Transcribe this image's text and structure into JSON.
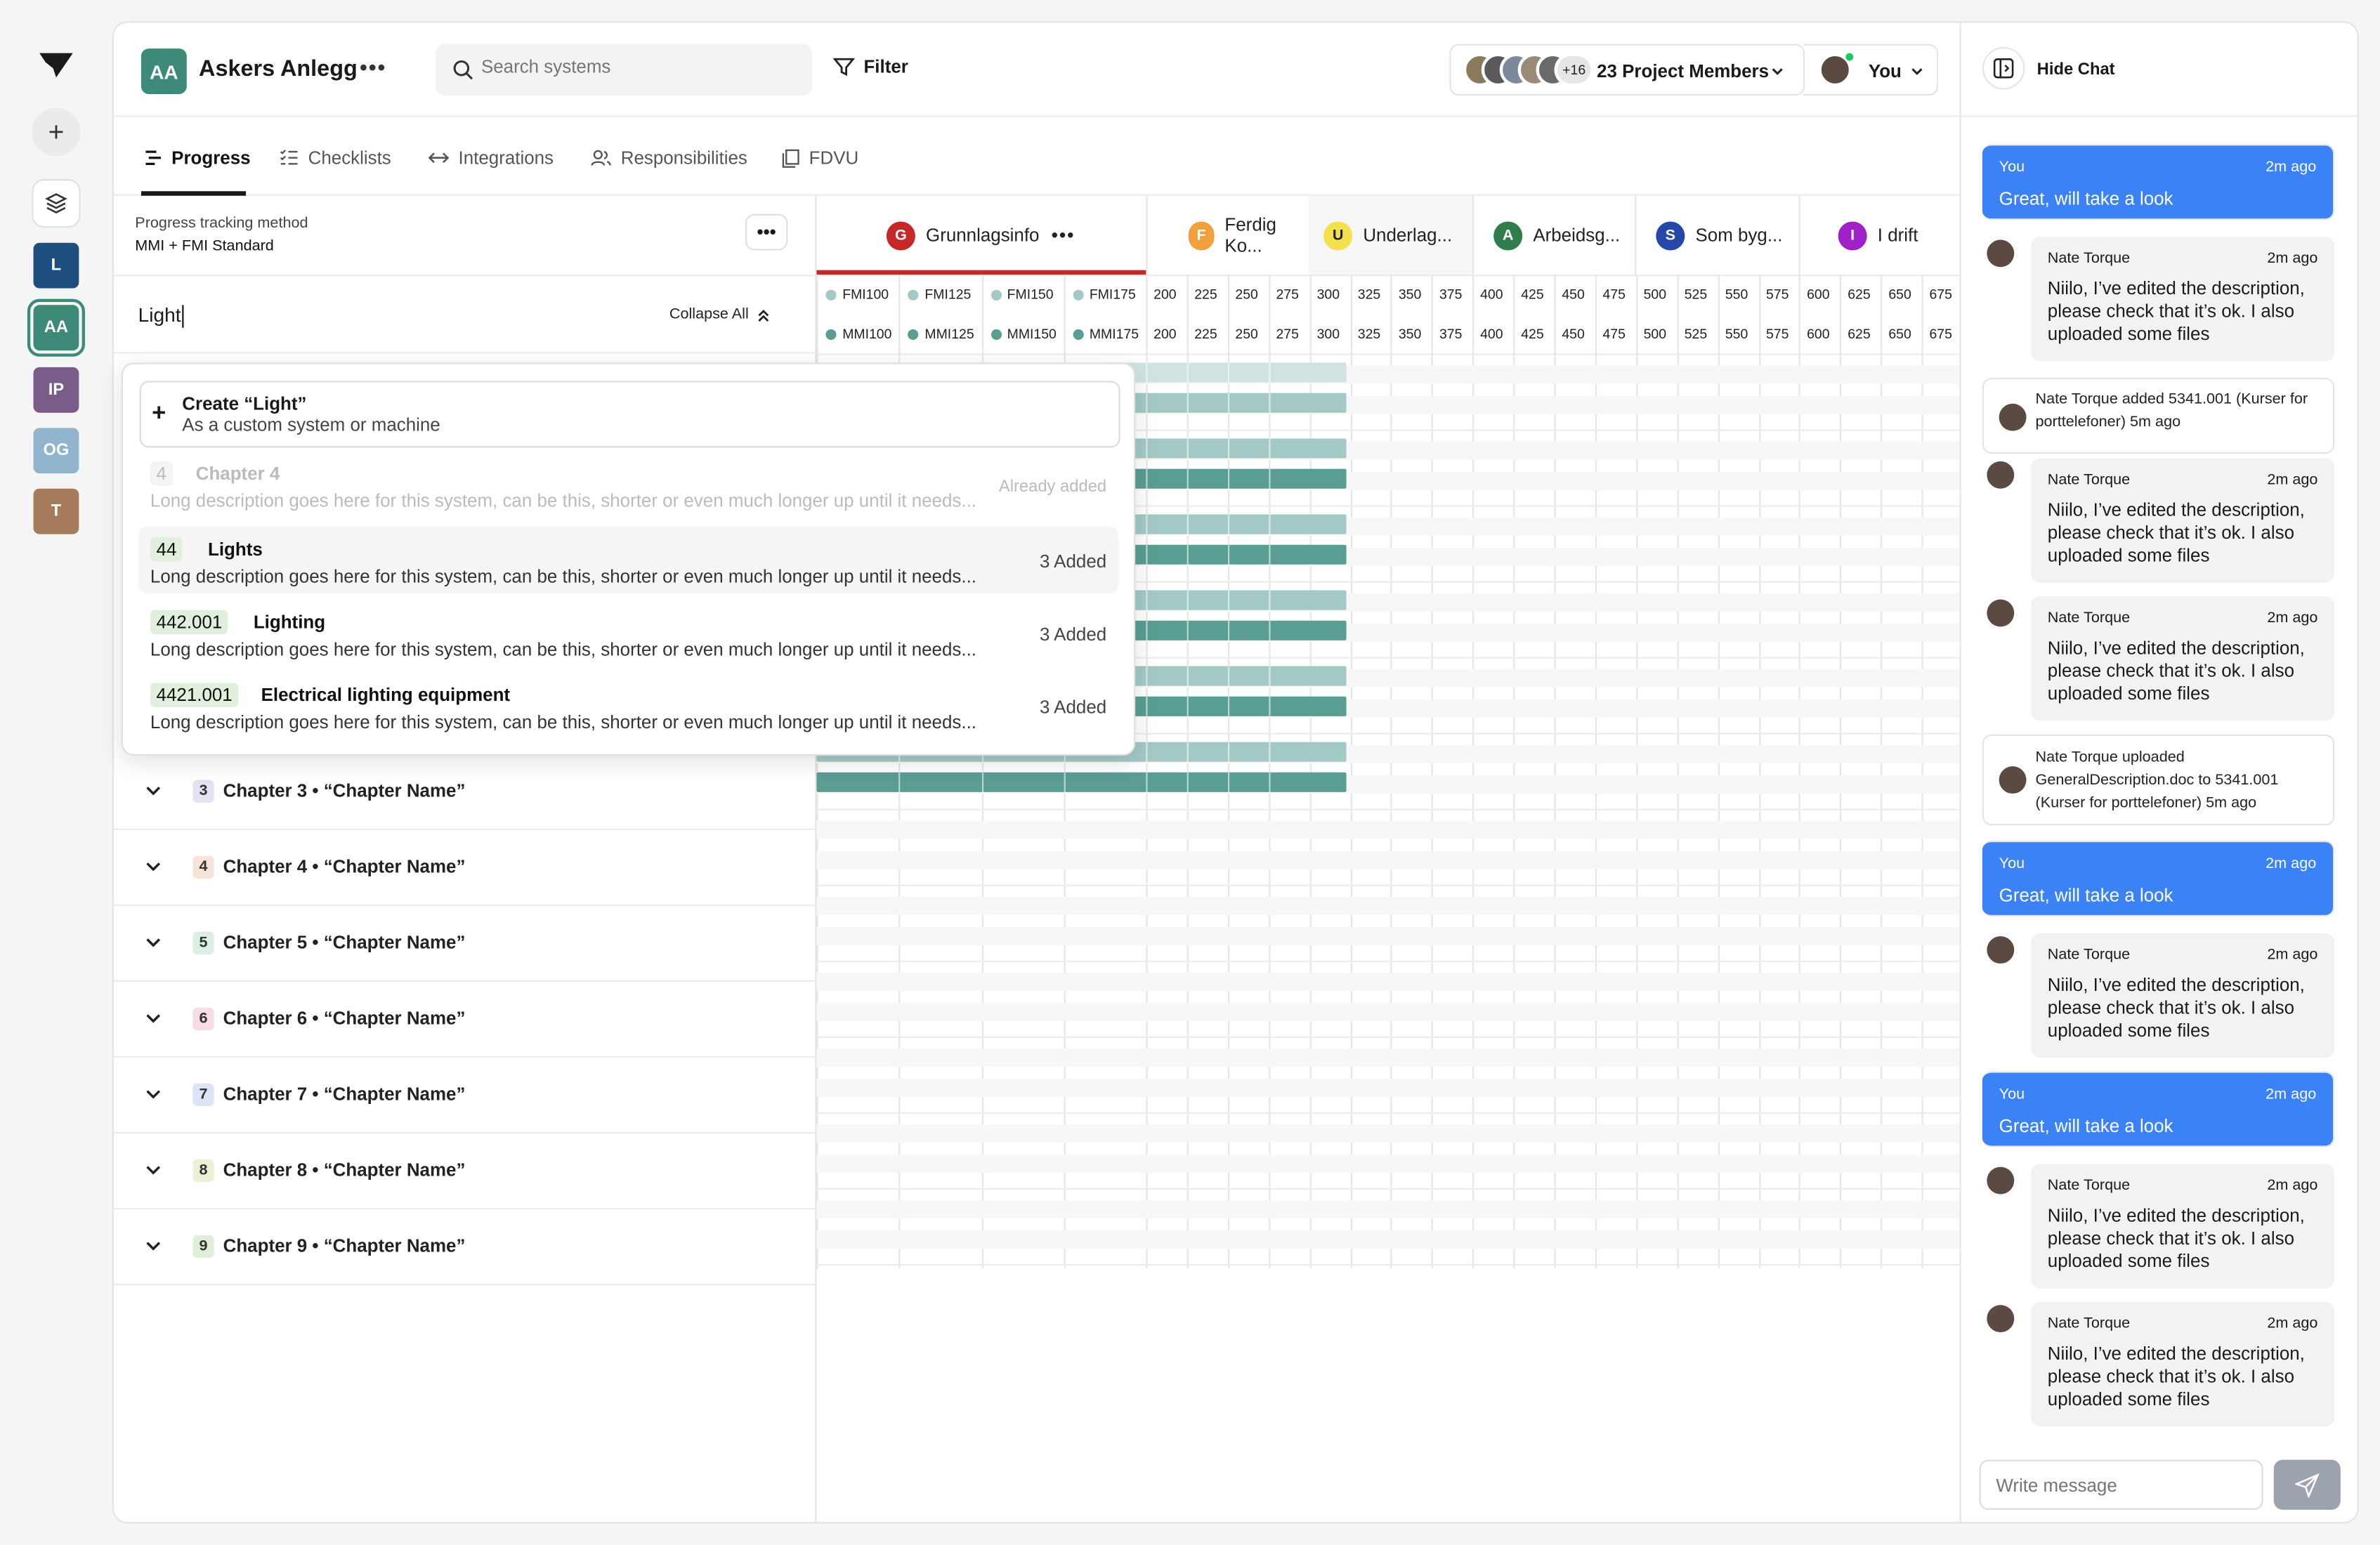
{
  "rail": {
    "projects": [
      {
        "initials": "L",
        "color": "#1d4e7e"
      },
      {
        "initials": "AA",
        "color": "#3d8a78",
        "selected": true
      },
      {
        "initials": "IP",
        "color": "#7a5c8a"
      },
      {
        "initials": "OG",
        "color": "#8fb4cc"
      },
      {
        "initials": "T",
        "color": "#a67b5b"
      }
    ]
  },
  "header": {
    "project_initials": "AA",
    "project_name": "Askers Anlegg",
    "search_placeholder": "Search systems",
    "filter_label": "Filter",
    "members_more": "+16",
    "members_label": "23 Project Members",
    "user_label": "You"
  },
  "tabs": [
    {
      "label": "Progress",
      "icon": "progress-icon",
      "active": true
    },
    {
      "label": "Checklists",
      "icon": "checklist-icon"
    },
    {
      "label": "Integrations",
      "icon": "arrows-icon"
    },
    {
      "label": "Responsibilities",
      "icon": "people-icon"
    },
    {
      "label": "FDVU",
      "icon": "documents-icon"
    }
  ],
  "left": {
    "method_label": "Progress tracking method",
    "method_value": "MMI + FMI Standard",
    "search_value": "Light",
    "collapse_label": "Collapse All",
    "chapters": [
      {
        "num": "3",
        "title": "Chapter 3 • “Chapter Name”",
        "color": "#e5e1f3"
      },
      {
        "num": "4",
        "title": "Chapter 4 • “Chapter Name”",
        "color": "#f6e3da"
      },
      {
        "num": "5",
        "title": "Chapter 5 • “Chapter Name”",
        "color": "#dbf0e4"
      },
      {
        "num": "6",
        "title": "Chapter 6 • “Chapter Name”",
        "color": "#f7dde3"
      },
      {
        "num": "7",
        "title": "Chapter 7 • “Chapter Name”",
        "color": "#dee3f5"
      },
      {
        "num": "8",
        "title": "Chapter 8 • “Chapter Name”",
        "color": "#eef0d6"
      },
      {
        "num": "9",
        "title": "Chapter 9 • “Chapter Name”",
        "color": "#e0f0d8"
      }
    ]
  },
  "dropdown": {
    "create_title": "Create “Light”",
    "create_sub": "As a custom system or machine",
    "items": [
      {
        "code": "4",
        "name": "Chapter 4",
        "desc": "Long description goes here for this system, can be this, shorter or even much longer up until it needs...",
        "status": "Already added",
        "disabled": true
      },
      {
        "code": "44",
        "name": "Lights",
        "desc": "Long description goes here for this system, can be this, shorter or even much longer up until it needs...",
        "status": "3 Added",
        "highlight": true
      },
      {
        "code": "442.001",
        "name": "Lighting",
        "desc": "Long description goes here for this system, can be this, shorter or even much longer up until it needs...",
        "status": "3 Added"
      },
      {
        "code": "4421.001",
        "name": "Electrical lighting equipment",
        "desc": "Long description goes here for this system, can be this, shorter or even much longer up until it needs...",
        "status": "3 Added"
      }
    ]
  },
  "grid": {
    "phases": [
      {
        "initial": "G",
        "label": "Grunnlagsinfo",
        "color": "#c62828",
        "text": "#fff",
        "active": true
      },
      {
        "initial": "F",
        "label": "Ferdig Ko...",
        "color": "#f0a03c",
        "text": "#fff"
      },
      {
        "initial": "U",
        "label": "Underlag...",
        "color": "#f4e04d",
        "text": "#222",
        "shaded": true
      },
      {
        "initial": "A",
        "label": "Arbeidsg...",
        "color": "#2e7d4a",
        "text": "#fff"
      },
      {
        "initial": "S",
        "label": "Som byg...",
        "color": "#2447a8",
        "text": "#fff"
      },
      {
        "initial": "I",
        "label": "I drift",
        "color": "#a020c8",
        "text": "#fff"
      }
    ],
    "fmi_labels": [
      "FMI100",
      "FMI125",
      "FMI150",
      "FMI175"
    ],
    "mmi_labels": [
      "MMI100",
      "MMI125",
      "MMI150",
      "MMI175"
    ],
    "levels": [
      "200",
      "225",
      "250",
      "275",
      "300",
      "325",
      "350",
      "375",
      "400",
      "425",
      "450",
      "475",
      "500",
      "525",
      "550",
      "575",
      "600",
      "625",
      "650",
      "675"
    ],
    "bar_colors": {
      "fmi": "#a3c9c4",
      "mmi": "#5a9d92",
      "fmi_faint": "#cfe3e1"
    }
  },
  "chat": {
    "hide_label": "Hide Chat",
    "input_placeholder": "Write message",
    "messages": [
      {
        "type": "you",
        "who": "You",
        "time": "2m ago",
        "text": "Great, will take a look"
      },
      {
        "type": "other",
        "who": "Nate Torque",
        "time": "2m ago",
        "text": "Niilo, I’ve edited the description, please check that it’s ok. I also uploaded some files"
      },
      {
        "type": "notice",
        "text": "Nate Torque added 5341.001 (Kurser for porttelefoner) 5m ago"
      },
      {
        "type": "other",
        "who": "Nate Torque",
        "time": "2m ago",
        "text": "Niilo, I’ve edited the description, please check that it’s ok. I also uploaded some files"
      },
      {
        "type": "other",
        "who": "Nate Torque",
        "time": "2m ago",
        "text": "Niilo, I’ve edited the description, please check that it’s ok. I also uploaded some files"
      },
      {
        "type": "notice2",
        "text": "Nate Torque uploaded GeneralDescription.doc to 5341.001 (Kurser for porttelefoner) 5m ago"
      },
      {
        "type": "you",
        "who": "You",
        "time": "2m ago",
        "text": "Great, will take a look"
      },
      {
        "type": "other",
        "who": "Nate Torque",
        "time": "2m ago",
        "text": "Niilo, I’ve edited the description, please check that it’s ok. I also uploaded some files"
      },
      {
        "type": "you",
        "who": "You",
        "time": "2m ago",
        "text": "Great, will take a look"
      },
      {
        "type": "other",
        "who": "Nate Torque",
        "time": "2m ago",
        "text": "Niilo, I’ve edited the description, please check that it’s ok. I also uploaded some files"
      },
      {
        "type": "other",
        "who": "Nate Torque",
        "time": "2m ago",
        "text": "Niilo, I’ve edited the description, please check that it’s ok. I also uploaded some files"
      }
    ]
  }
}
